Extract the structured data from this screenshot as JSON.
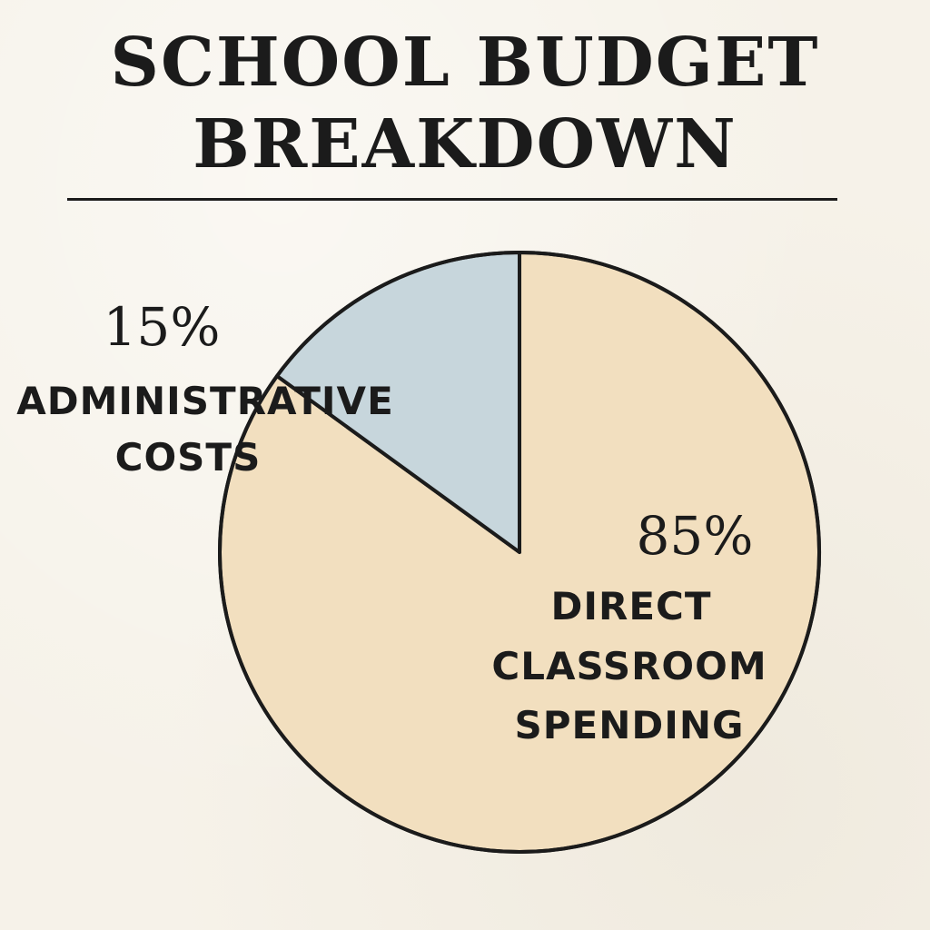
{
  "title_lines": [
    "SCHOOL BUDGET",
    "BREAKDOWN"
  ],
  "chart_data": {
    "type": "pie",
    "title": "SCHOOL BUDGET BREAKDOWN",
    "slices": [
      {
        "percent_label": "85%",
        "value": 85,
        "label_lines": [
          "DIRECT",
          "CLASSROOM",
          "SPENDING"
        ],
        "color": "#f2dfbf"
      },
      {
        "percent_label": "15%",
        "value": 15,
        "label_lines": [
          "ADMINISTRATIVE",
          "COSTS"
        ],
        "color": "#c7d6dc"
      }
    ]
  },
  "colors": {
    "background": "#f6f2e9",
    "ink": "#1b1b1b"
  }
}
